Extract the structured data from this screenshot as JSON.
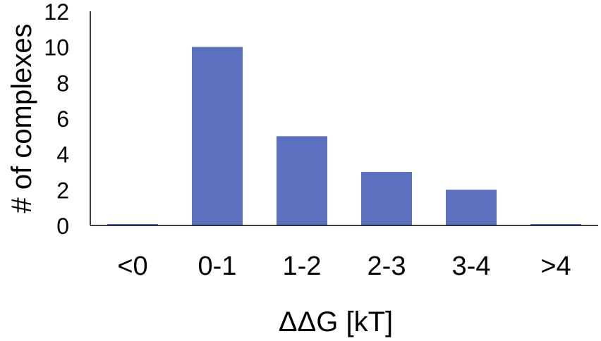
{
  "chart_data": {
    "type": "bar",
    "title": "",
    "xlabel": "ΔΔG [kT]",
    "ylabel": "# of complexes",
    "categories": [
      "<0",
      "0-1",
      "1-2",
      "2-3",
      "3-4",
      ">4"
    ],
    "values": [
      0,
      10,
      5,
      3,
      2,
      0
    ],
    "ylim": [
      0,
      12
    ],
    "yticks": [
      0,
      2,
      4,
      6,
      8,
      10,
      12
    ],
    "grid": false,
    "legend": "none",
    "bar_color": "#5b71c0",
    "axis_color": "#000000"
  }
}
